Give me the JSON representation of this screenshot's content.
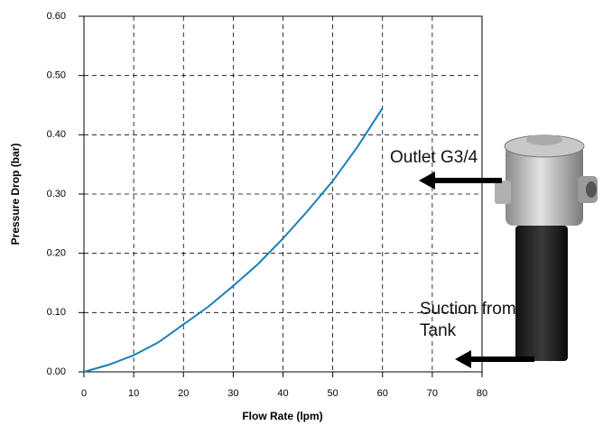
{
  "chart_data": {
    "type": "line",
    "x_label": "Flow Rate (lpm)",
    "y_label": "Pressure Drop (bar)",
    "x": [
      0,
      5,
      10,
      15,
      20,
      25,
      30,
      35,
      40,
      45,
      50,
      55,
      60
    ],
    "values": [
      0,
      0.012,
      0.028,
      0.05,
      0.08,
      0.11,
      0.145,
      0.182,
      0.225,
      0.272,
      0.322,
      0.38,
      0.445
    ],
    "color": "#1a7fb8",
    "xlim": [
      0,
      80
    ],
    "xticks": [
      0,
      10,
      20,
      30,
      40,
      50,
      60,
      70,
      80
    ],
    "ylim": [
      0,
      0.6
    ],
    "yticks": [
      {
        "value": 0,
        "label": "0.00"
      },
      {
        "value": 0.1,
        "label": "0.10"
      },
      {
        "value": 0.2,
        "label": "0.20"
      },
      {
        "value": 0.3,
        "label": "0.30"
      },
      {
        "value": 0.4,
        "label": "0.40"
      },
      {
        "value": 0.5,
        "label": "0.50"
      },
      {
        "value": 0.6,
        "label": "0.60"
      }
    ],
    "grid": true,
    "annotations": [
      "Outlet G3/4",
      "Suction from Tank"
    ]
  }
}
